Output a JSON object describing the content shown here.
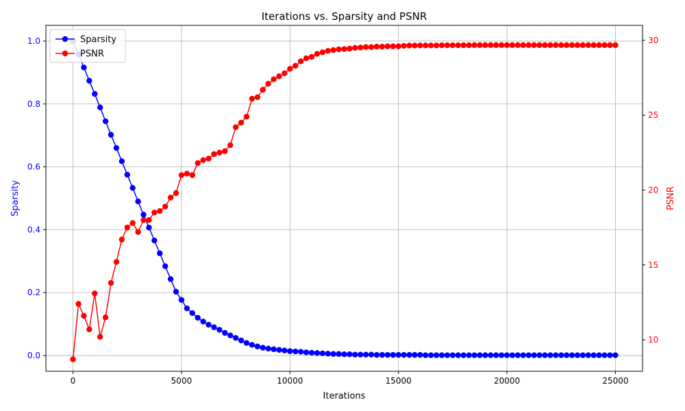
{
  "chart_data": {
    "type": "line",
    "title": "Iterations vs. Sparsity and PSNR",
    "xlabel": "Iterations",
    "ylabel_left": "Sparsity",
    "ylabel_right": "PSNR",
    "xlim": [
      -1250,
      26250
    ],
    "ylim_left": [
      -0.05,
      1.05
    ],
    "ylim_right": [
      7.9,
      31.0
    ],
    "x_ticks": [
      0,
      5000,
      10000,
      15000,
      20000,
      25000
    ],
    "x_tick_labels": [
      "0",
      "5000",
      "10000",
      "15000",
      "20000",
      "25000"
    ],
    "y_left_ticks": [
      0.0,
      0.2,
      0.4,
      0.6,
      0.8,
      1.0
    ],
    "y_left_tick_labels": [
      "0.0",
      "0.2",
      "0.4",
      "0.6",
      "0.8",
      "1.0"
    ],
    "y_right_ticks": [
      10,
      15,
      20,
      25,
      30
    ],
    "y_right_tick_labels": [
      "10",
      "15",
      "20",
      "25",
      "30"
    ],
    "grid": true,
    "legend": "top-left",
    "x": [
      0,
      250,
      500,
      750,
      1000,
      1250,
      1500,
      1750,
      2000,
      2250,
      2500,
      2750,
      3000,
      3250,
      3500,
      3750,
      4000,
      4250,
      4500,
      4750,
      5000,
      5250,
      5500,
      5750,
      6000,
      6250,
      6500,
      6750,
      7000,
      7250,
      7500,
      7750,
      8000,
      8250,
      8500,
      8750,
      9000,
      9250,
      9500,
      9750,
      10000,
      10250,
      10500,
      10750,
      11000,
      11250,
      11500,
      11750,
      12000,
      12250,
      12500,
      12750,
      13000,
      13250,
      13500,
      13750,
      14000,
      14250,
      14500,
      14750,
      15000,
      15250,
      15500,
      15750,
      16000,
      16250,
      16500,
      16750,
      17000,
      17250,
      17500,
      17750,
      18000,
      18250,
      18500,
      18750,
      19000,
      19250,
      19500,
      19750,
      20000,
      20250,
      20500,
      20750,
      21000,
      21250,
      21500,
      21750,
      22000,
      22250,
      22500,
      22750,
      23000,
      23250,
      23500,
      23750,
      24000,
      24250,
      24500,
      24750,
      25000
    ],
    "series": [
      {
        "name": "Sparsity",
        "axis": "left",
        "color": "#0000ff",
        "values": [
          1.0,
          0.958,
          0.916,
          0.874,
          0.832,
          0.789,
          0.745,
          0.702,
          0.66,
          0.618,
          0.575,
          0.533,
          0.49,
          0.448,
          0.407,
          0.366,
          0.325,
          0.284,
          0.243,
          0.203,
          0.177,
          0.15,
          0.135,
          0.12,
          0.108,
          0.098,
          0.09,
          0.082,
          0.072,
          0.064,
          0.056,
          0.048,
          0.04,
          0.034,
          0.029,
          0.025,
          0.022,
          0.02,
          0.018,
          0.016,
          0.014,
          0.013,
          0.012,
          0.01,
          0.009,
          0.008,
          0.007,
          0.006,
          0.005,
          0.005,
          0.004,
          0.004,
          0.003,
          0.003,
          0.003,
          0.003,
          0.002,
          0.002,
          0.002,
          0.002,
          0.002,
          0.002,
          0.002,
          0.002,
          0.002,
          0.001,
          0.001,
          0.001,
          0.001,
          0.001,
          0.001,
          0.001,
          0.001,
          0.001,
          0.001,
          0.001,
          0.001,
          0.001,
          0.001,
          0.001,
          0.001,
          0.001,
          0.001,
          0.001,
          0.001,
          0.001,
          0.001,
          0.001,
          0.001,
          0.001,
          0.001,
          0.001,
          0.001,
          0.001,
          0.001,
          0.001,
          0.001,
          0.001,
          0.001,
          0.001,
          0.001
        ]
      },
      {
        "name": "PSNR",
        "axis": "right",
        "color": "#ff0000",
        "values": [
          8.7,
          12.4,
          11.6,
          10.7,
          13.1,
          10.2,
          11.5,
          13.8,
          15.2,
          16.7,
          17.5,
          17.8,
          17.2,
          18.0,
          18.0,
          18.5,
          18.6,
          18.9,
          19.5,
          19.8,
          21.0,
          21.1,
          21.0,
          21.8,
          22.0,
          22.1,
          22.4,
          22.5,
          22.6,
          23.0,
          24.2,
          24.5,
          24.9,
          26.1,
          26.2,
          26.7,
          27.1,
          27.4,
          27.6,
          27.8,
          28.1,
          28.3,
          28.6,
          28.8,
          28.9,
          29.1,
          29.2,
          29.3,
          29.35,
          29.4,
          29.42,
          29.45,
          29.5,
          29.52,
          29.55,
          29.55,
          29.58,
          29.58,
          29.6,
          29.6,
          29.6,
          29.63,
          29.65,
          29.65,
          29.66,
          29.66,
          29.66,
          29.66,
          29.67,
          29.67,
          29.67,
          29.67,
          29.67,
          29.67,
          29.68,
          29.68,
          29.68,
          29.68,
          29.68,
          29.68,
          29.68,
          29.68,
          29.68,
          29.68,
          29.68,
          29.68,
          29.68,
          29.68,
          29.68,
          29.68,
          29.68,
          29.68,
          29.68,
          29.68,
          29.68,
          29.68,
          29.68,
          29.68,
          29.68,
          29.68,
          29.68
        ]
      }
    ]
  }
}
